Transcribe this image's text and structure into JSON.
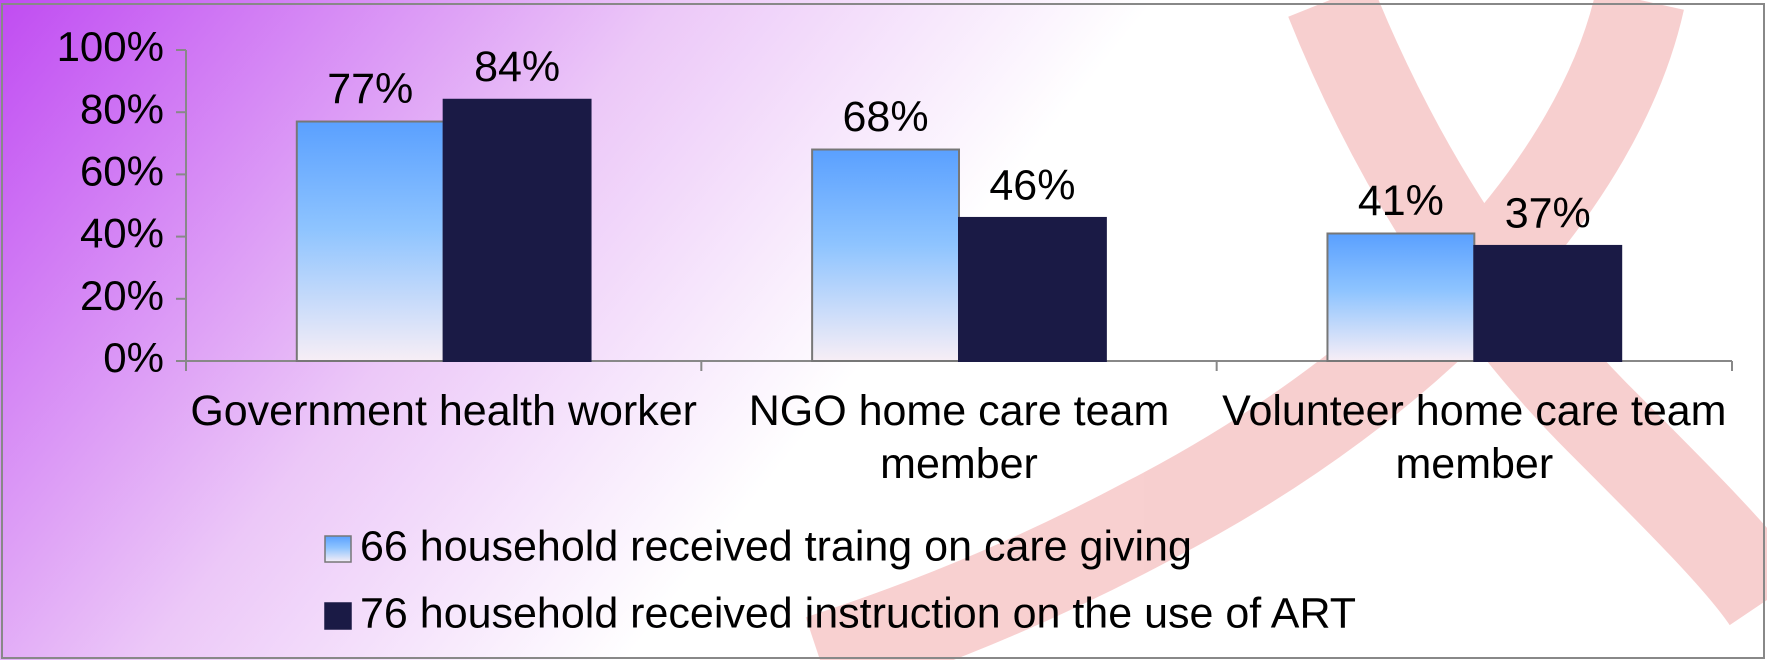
{
  "chart_data": {
    "type": "bar",
    "categories": [
      "Government health worker",
      "NGO home care team member",
      "Volunteer home care team member"
    ],
    "series": [
      {
        "name": "66 household received traing on care giving",
        "color": "#5aa0ff",
        "values": [
          77,
          68,
          41
        ],
        "value_labels": [
          "77%",
          "68%",
          "41%"
        ]
      },
      {
        "name": "76 household received instruction on the use of ART",
        "color": "#1a1a45",
        "values": [
          84,
          46,
          37
        ],
        "value_labels": [
          "84%",
          "46%",
          "37%"
        ]
      }
    ],
    "ylim": [
      0,
      100
    ],
    "yticks": [
      {
        "value": 0,
        "label": "0%"
      },
      {
        "value": 20,
        "label": "20%"
      },
      {
        "value": 40,
        "label": "40%"
      },
      {
        "value": 60,
        "label": "60%"
      },
      {
        "value": 80,
        "label": "80%"
      },
      {
        "value": 100,
        "label": "100%"
      }
    ],
    "grid": false,
    "legend": "bottom"
  }
}
